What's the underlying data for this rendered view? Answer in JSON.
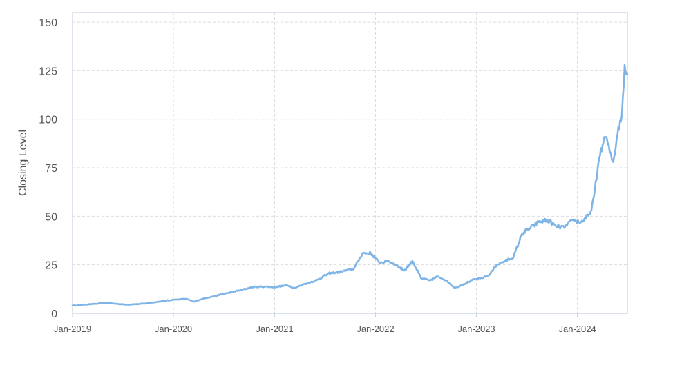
{
  "colors": {
    "line": "#7EB4E6",
    "grid": "#dcdcdc",
    "frame": "#c9d3e0",
    "text": "#555555"
  },
  "chart_data": {
    "type": "line",
    "title": "",
    "xlabel": "",
    "ylabel": "Closing Level",
    "xlim": [
      "2019-01-01",
      "2024-06-30"
    ],
    "ylim": [
      0,
      155
    ],
    "x_ticks": [
      "Jan-2019",
      "Jan-2020",
      "Jan-2021",
      "Jan-2022",
      "Jan-2023",
      "Jan-2024"
    ],
    "y_ticks": [
      0,
      25,
      50,
      75,
      100,
      125,
      150
    ],
    "grid": true,
    "legend": "none",
    "series": [
      {
        "x": [
          "2019-01-01",
          "2019-02-15",
          "2019-04-01",
          "2019-05-01",
          "2019-06-01",
          "2019-07-15",
          "2019-09-01",
          "2019-10-15",
          "2019-12-01",
          "2020-01-01",
          "2020-02-15",
          "2020-03-15",
          "2020-04-15",
          "2020-06-01",
          "2020-07-15",
          "2020-09-01",
          "2020-10-15",
          "2020-12-01",
          "2021-01-01",
          "2021-02-15",
          "2021-03-15",
          "2021-04-15",
          "2021-06-01",
          "2021-07-15",
          "2021-09-01",
          "2021-10-15",
          "2021-11-15",
          "2021-12-15",
          "2022-01-15",
          "2022-02-15",
          "2022-03-15",
          "2022-04-15",
          "2022-05-15",
          "2022-06-15",
          "2022-07-15",
          "2022-08-15",
          "2022-09-15",
          "2022-10-15",
          "2022-11-15",
          "2022-12-15",
          "2023-01-15",
          "2023-02-15",
          "2023-03-15",
          "2023-04-15",
          "2023-05-15",
          "2023-06-15",
          "2023-07-15",
          "2023-08-15",
          "2023-09-15",
          "2023-10-15",
          "2023-11-15",
          "2023-12-15",
          "2024-01-15",
          "2024-02-15",
          "2024-03-01",
          "2024-03-20",
          "2024-04-10",
          "2024-04-20",
          "2024-05-10",
          "2024-05-25",
          "2024-06-10",
          "2024-06-20",
          "2024-06-30"
        ],
        "y": [
          4,
          4.5,
          5,
          5.5,
          5,
          4.5,
          4.8,
          5.5,
          6.5,
          7,
          7.5,
          6,
          7.5,
          9,
          10.5,
          12,
          13.5,
          13.8,
          13.5,
          14.5,
          13,
          15,
          17,
          20.5,
          21.5,
          23,
          31,
          31,
          26,
          27,
          25,
          22,
          27,
          18,
          17,
          19,
          17,
          13,
          15,
          17,
          18,
          19.5,
          25,
          27,
          29,
          41,
          44,
          47,
          48,
          45,
          44,
          48,
          47,
          51,
          60,
          80,
          91,
          87,
          78,
          92,
          102,
          128,
          123
        ]
      }
    ]
  }
}
